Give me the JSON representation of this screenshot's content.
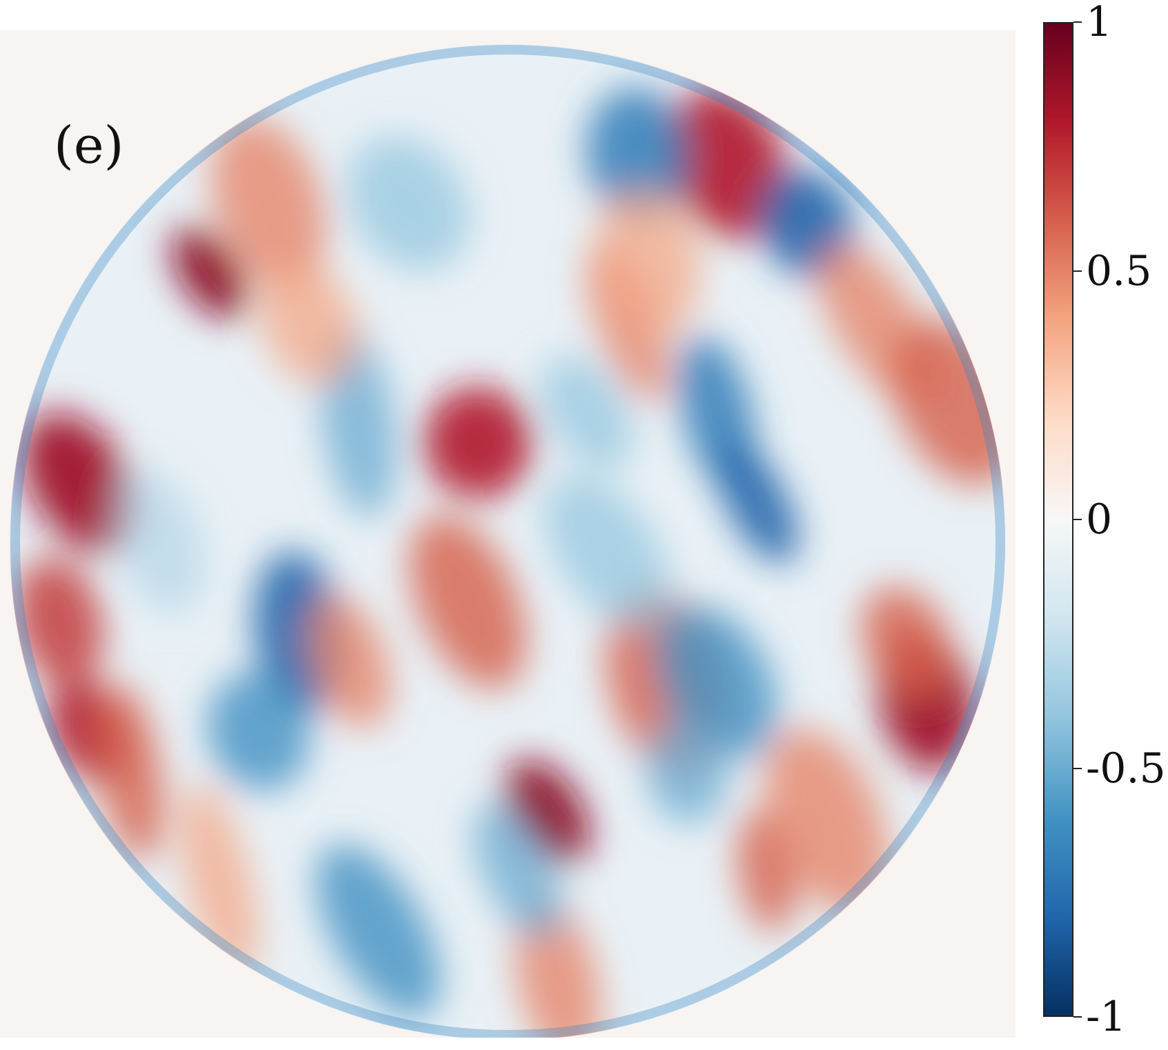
{
  "panel_label": "(e)",
  "chart_data": {
    "type": "heatmap",
    "title": "",
    "xlabel": "",
    "ylabel": "",
    "description_shape": "circular field",
    "colormap": {
      "name": "red-blue diverging",
      "stops": [
        "#053061",
        "#2166ac",
        "#4393c3",
        "#92c5de",
        "#d1e5f0",
        "#f7f7f7",
        "#fddbc7",
        "#f4a582",
        "#d6604d",
        "#b2182b",
        "#67001f"
      ]
    },
    "colorbar": {
      "range": [
        -1,
        1
      ],
      "ticks": [
        {
          "value": 1,
          "label": "1"
        },
        {
          "value": 0.5,
          "label": "0.5"
        },
        {
          "value": 0,
          "label": "0"
        },
        {
          "value": -0.5,
          "label": "-0.5"
        },
        {
          "value": -1,
          "label": "-1"
        }
      ]
    },
    "features": [
      {
        "u": 0.2,
        "v": 0.23,
        "value": 0.9
      },
      {
        "u": 0.26,
        "v": 0.16,
        "value": 0.5
      },
      {
        "u": 0.07,
        "v": 0.44,
        "value": 0.85
      },
      {
        "u": 0.05,
        "v": 0.58,
        "value": 0.7
      },
      {
        "u": 0.08,
        "v": 0.69,
        "value": 0.8
      },
      {
        "u": 0.12,
        "v": 0.73,
        "value": 0.6
      },
      {
        "u": 0.72,
        "v": 0.12,
        "value": 0.8
      },
      {
        "u": 0.63,
        "v": 0.11,
        "value": -0.7
      },
      {
        "u": 0.8,
        "v": 0.18,
        "value": -0.8
      },
      {
        "u": 0.87,
        "v": 0.28,
        "value": 0.5
      },
      {
        "u": 0.71,
        "v": 0.37,
        "value": -0.7
      },
      {
        "u": 0.75,
        "v": 0.46,
        "value": -0.8
      },
      {
        "u": 0.47,
        "v": 0.4,
        "value": 0.8
      },
      {
        "u": 0.46,
        "v": 0.56,
        "value": 0.6
      },
      {
        "u": 0.29,
        "v": 0.59,
        "value": -0.8
      },
      {
        "u": 0.34,
        "v": 0.62,
        "value": 0.5
      },
      {
        "u": 0.54,
        "v": 0.77,
        "value": 0.9
      },
      {
        "u": 0.66,
        "v": 0.64,
        "value": 0.6
      },
      {
        "u": 0.71,
        "v": 0.64,
        "value": -0.6
      },
      {
        "u": 0.92,
        "v": 0.66,
        "value": 0.85
      },
      {
        "u": 0.9,
        "v": 0.6,
        "value": 0.6
      },
      {
        "u": 0.35,
        "v": 0.38,
        "value": -0.5
      },
      {
        "u": 0.62,
        "v": 0.28,
        "value": 0.5
      },
      {
        "u": 0.4,
        "v": 0.16,
        "value": -0.4
      },
      {
        "u": 0.25,
        "v": 0.69,
        "value": -0.6
      },
      {
        "u": 0.37,
        "v": 0.89,
        "value": -0.6
      },
      {
        "u": 0.55,
        "v": 0.94,
        "value": 0.5
      },
      {
        "u": 0.51,
        "v": 0.83,
        "value": -0.5
      },
      {
        "u": 0.76,
        "v": 0.83,
        "value": 0.6
      },
      {
        "u": 0.82,
        "v": 0.78,
        "value": 0.5
      },
      {
        "u": 0.6,
        "v": 0.51,
        "value": -0.4
      },
      {
        "u": 0.15,
        "v": 0.5,
        "value": -0.3
      },
      {
        "u": 0.58,
        "v": 0.37,
        "value": -0.4
      },
      {
        "u": 0.21,
        "v": 0.84,
        "value": 0.4
      },
      {
        "u": 0.95,
        "v": 0.36,
        "value": 0.6
      },
      {
        "u": 0.64,
        "v": 0.22,
        "value": 0.4
      },
      {
        "u": 0.3,
        "v": 0.28,
        "value": 0.4
      },
      {
        "u": 0.68,
        "v": 0.73,
        "value": -0.5
      }
    ]
  }
}
